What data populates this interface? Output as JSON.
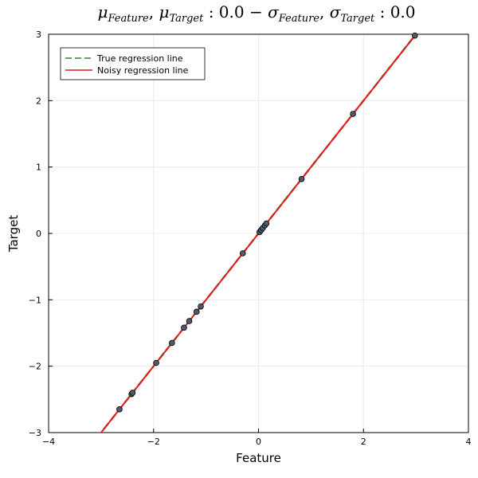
{
  "chart_data": {
    "type": "scatter",
    "title": {
      "parts": [
        {
          "text": "μ",
          "sub": "Feature"
        },
        {
          "text": ", μ",
          "sub": "Target"
        },
        {
          "text": " : 0.0 − σ",
          "sub": "Feature"
        },
        {
          "text": ", σ",
          "sub": "Target"
        },
        {
          "text": " : 0.0",
          "sub": ""
        }
      ]
    },
    "xlabel": "Feature",
    "ylabel": "Target",
    "xlim": [
      -4,
      4
    ],
    "ylim": [
      -3,
      3
    ],
    "xticks": [
      -4,
      -2,
      0,
      2,
      4
    ],
    "xtick_labels": [
      "−4",
      "−2",
      "0",
      "2",
      "4"
    ],
    "yticks": [
      -3,
      -2,
      -1,
      0,
      1,
      2,
      3
    ],
    "ytick_labels": [
      "−3",
      "−2",
      "−1",
      "0",
      "1",
      "2",
      "3"
    ],
    "grid": true,
    "legend_position": "top-left",
    "series": [
      {
        "name": "True regression line",
        "kind": "line",
        "style": "dashed",
        "color": "#2e8b2e",
        "x": [
          -4,
          4
        ],
        "y": [
          -4,
          4
        ]
      },
      {
        "name": "Noisy regression line",
        "kind": "line",
        "style": "solid",
        "color": "#e41a1c",
        "x": [
          -4,
          4
        ],
        "y": [
          -4,
          4
        ]
      },
      {
        "name": "",
        "kind": "points",
        "color": "#4d5b6b",
        "x": [
          -2.65,
          -2.42,
          -2.4,
          -1.95,
          -1.65,
          -1.42,
          -1.32,
          -1.18,
          -1.1,
          -0.3,
          0.02,
          0.05,
          0.08,
          0.12,
          0.15,
          0.82,
          1.8,
          2.98
        ],
        "y": [
          -2.65,
          -2.42,
          -2.4,
          -1.95,
          -1.65,
          -1.42,
          -1.32,
          -1.18,
          -1.1,
          -0.3,
          0.02,
          0.05,
          0.08,
          0.12,
          0.15,
          0.82,
          1.8,
          2.98
        ]
      }
    ]
  }
}
